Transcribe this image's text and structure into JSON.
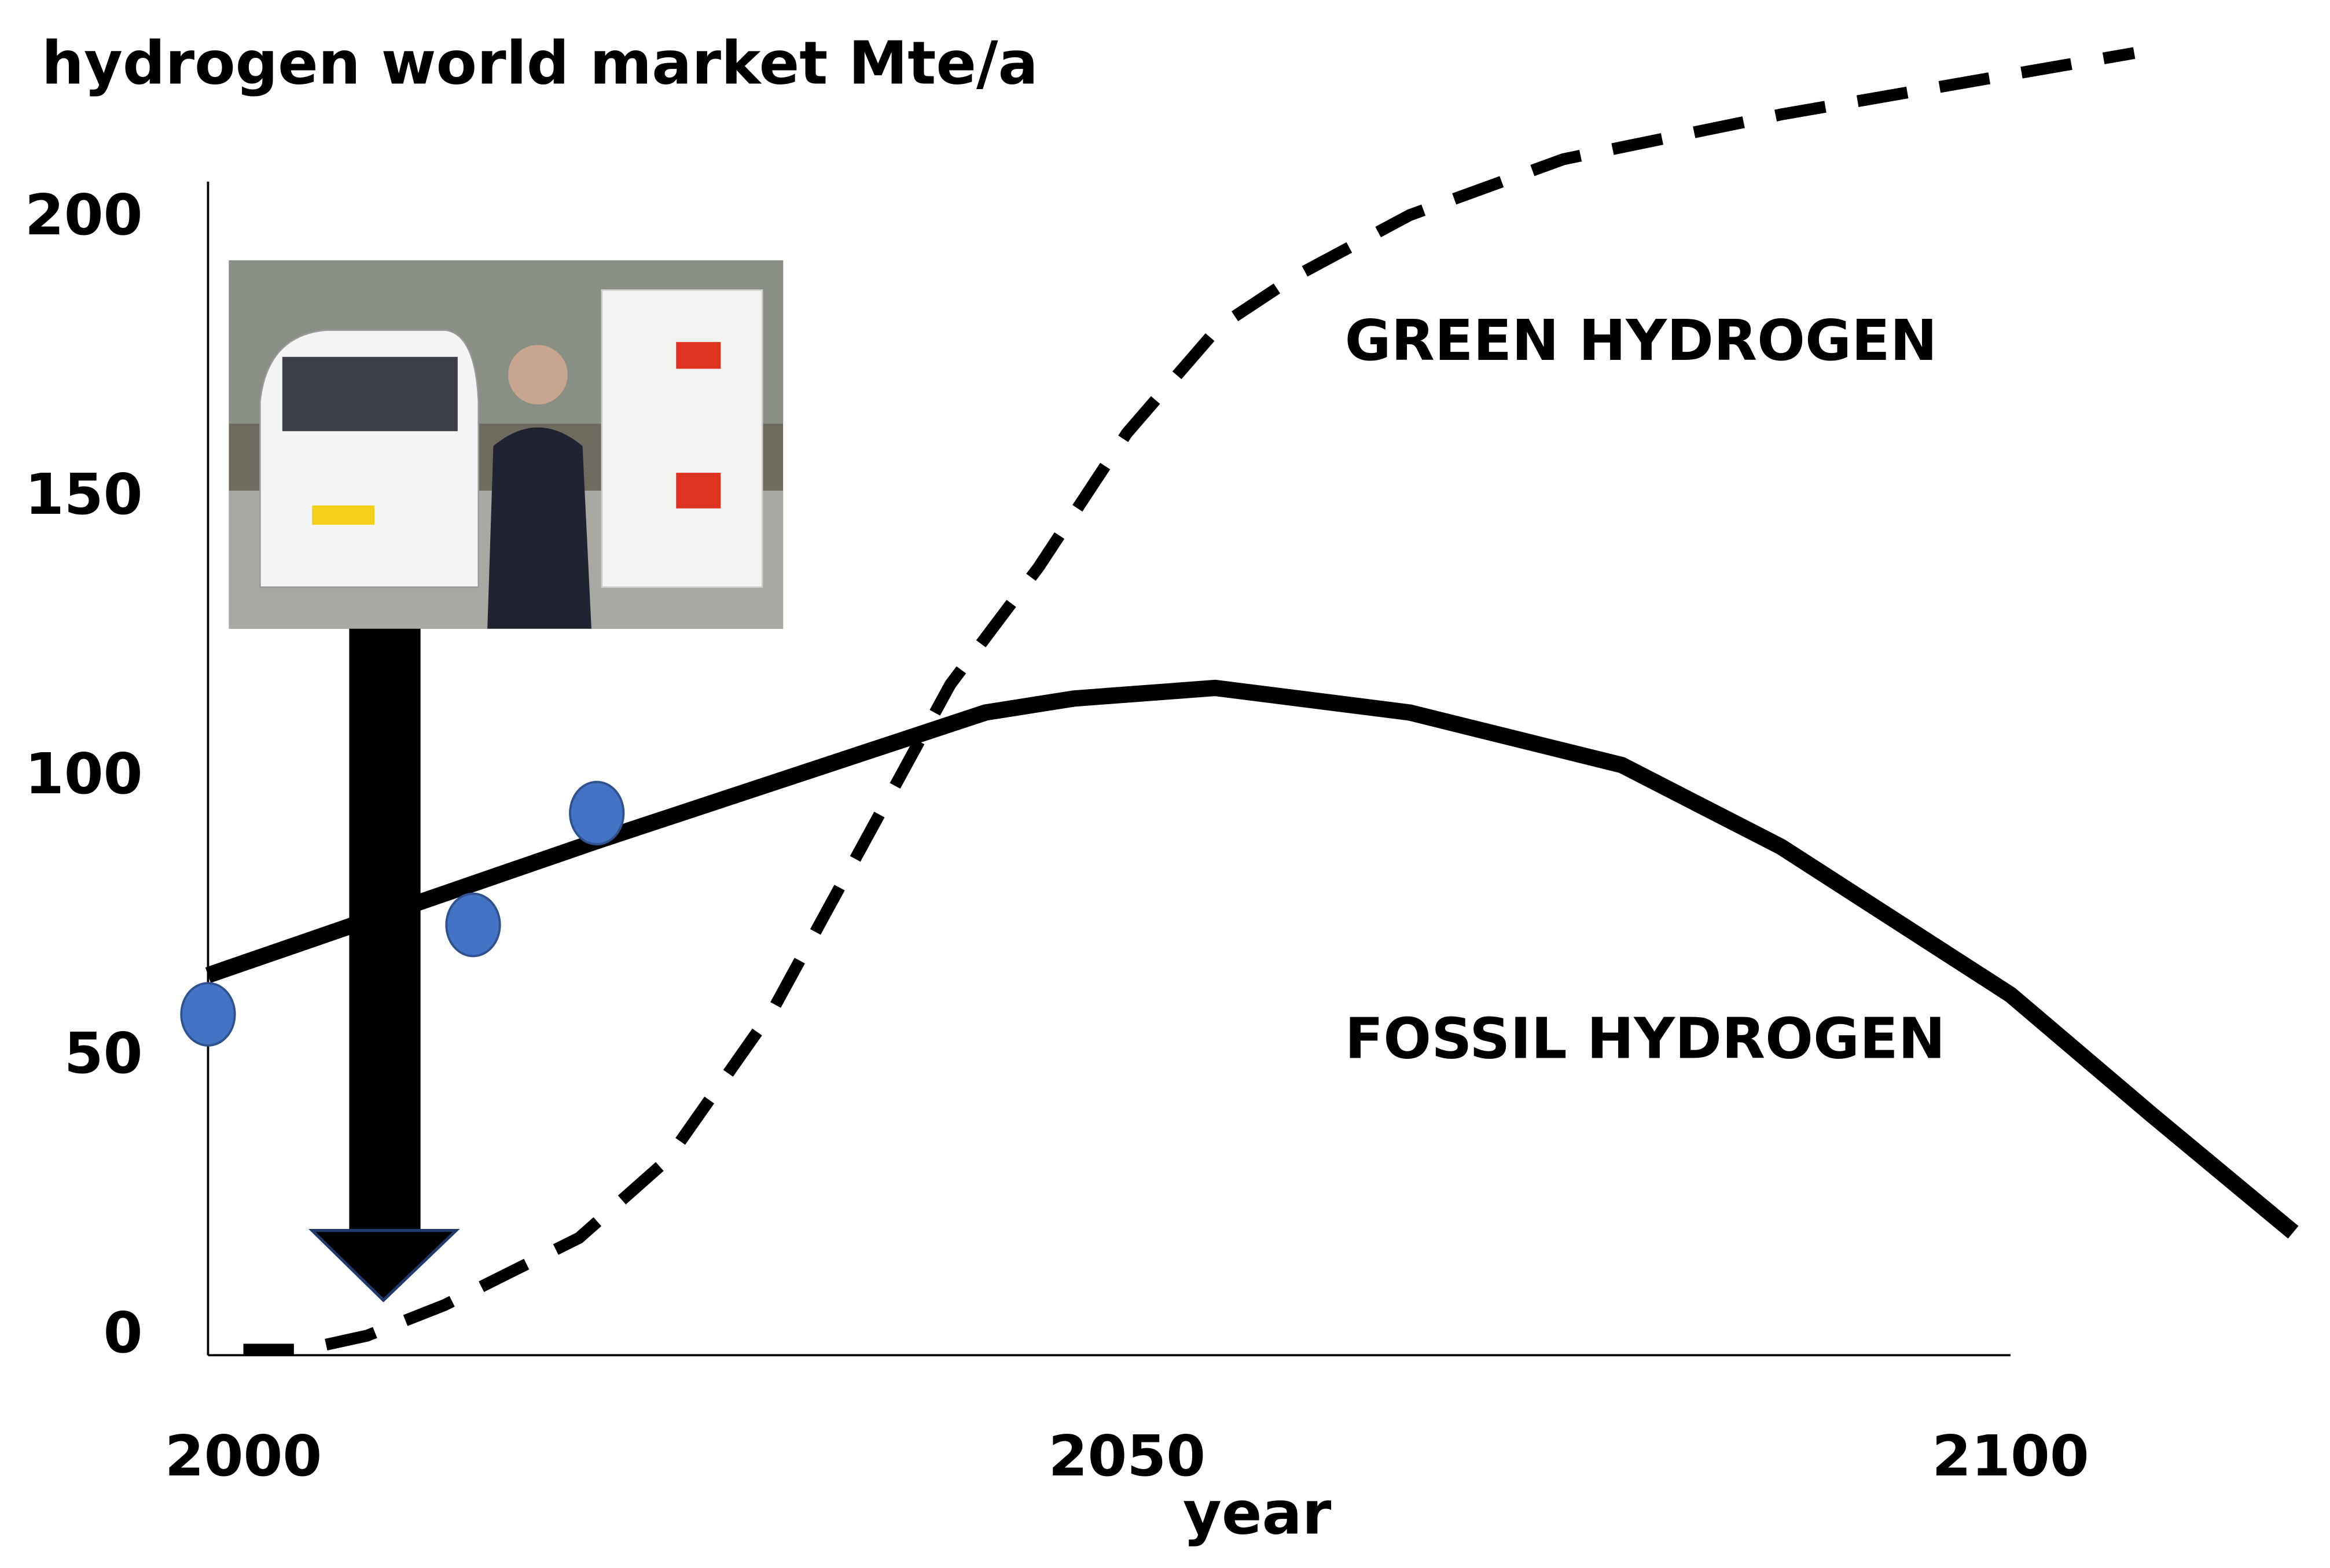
{
  "chart_data": {
    "type": "line",
    "title": "hydrogen world market Mte/a",
    "xlabel": "year",
    "xlim": [
      1998,
      2100
    ],
    "ylim": [
      -4,
      206
    ],
    "xticks": [
      2000,
      2050,
      2100
    ],
    "yticks": [
      0,
      50,
      100,
      150,
      200
    ],
    "grid": false,
    "series": [
      {
        "name": "FOSSIL HYDROGEN",
        "color": "#000000",
        "style": "solid",
        "x": [
          1998,
          2020,
          2042,
          2047,
          2055,
          2066,
          2078,
          2087,
          2100,
          2108,
          2116
        ],
        "values": [
          64,
          88,
          111,
          113.5,
          115.4,
          111,
          101.6,
          87,
          60.5,
          39,
          18
        ]
      },
      {
        "name": "GREEN HYDROGEN",
        "color": "#000000",
        "style": "dashed",
        "x": [
          2000,
          2003.4,
          2007,
          2011.4,
          2019,
          2024,
          2030,
          2035,
          2040,
          2045,
          2050,
          2055.2,
          2059.5,
          2066,
          2074.7,
          2087,
          2107
        ],
        "values": [
          -3,
          -3,
          -0.5,
          5,
          17,
          31,
          58,
          87,
          116,
          137,
          161,
          180,
          189,
          200,
          210,
          218,
          229
        ]
      },
      {
        "type": "scatter",
        "color": "#4472c4",
        "x": [
          1998,
          2013,
          2020
        ],
        "values": [
          57,
          73,
          93
        ]
      }
    ]
  }
}
